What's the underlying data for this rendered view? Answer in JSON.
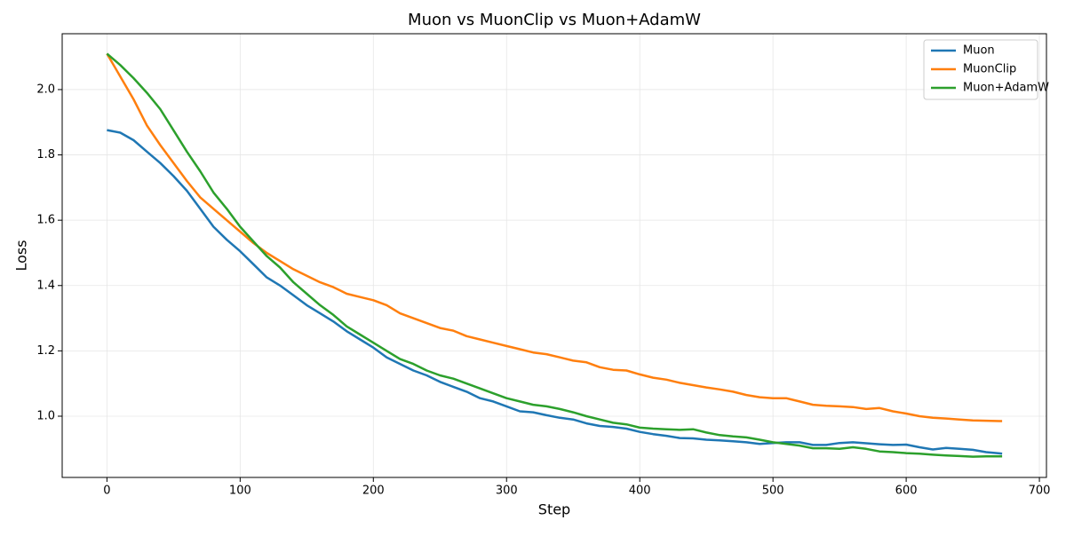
{
  "chart_data": {
    "type": "line",
    "title": "Muon vs MuonClip vs Muon+AdamW",
    "x_label": "Step",
    "y_label": "Loss",
    "x": [
      0,
      10,
      20,
      30,
      40,
      50,
      60,
      70,
      80,
      90,
      100,
      110,
      120,
      130,
      140,
      150,
      160,
      170,
      180,
      190,
      200,
      210,
      220,
      230,
      240,
      250,
      260,
      270,
      280,
      290,
      300,
      310,
      320,
      330,
      340,
      350,
      360,
      370,
      380,
      390,
      400,
      410,
      420,
      430,
      440,
      450,
      460,
      470,
      480,
      490,
      500,
      510,
      520,
      530,
      540,
      550,
      560,
      570,
      580,
      590,
      600,
      610,
      620,
      630,
      640,
      650,
      660,
      670,
      672
    ],
    "series": [
      {
        "name": "Muon",
        "color": "#1f77b4",
        "values": [
          1.876,
          1.868,
          1.845,
          1.81,
          1.775,
          1.735,
          1.69,
          1.635,
          1.58,
          1.54,
          1.505,
          1.465,
          1.425,
          1.4,
          1.37,
          1.34,
          1.315,
          1.29,
          1.26,
          1.235,
          1.21,
          1.18,
          1.16,
          1.14,
          1.125,
          1.105,
          1.09,
          1.075,
          1.055,
          1.045,
          1.03,
          1.015,
          1.012,
          1.003,
          0.995,
          0.99,
          0.978,
          0.97,
          0.967,
          0.962,
          0.952,
          0.945,
          0.94,
          0.933,
          0.932,
          0.928,
          0.926,
          0.923,
          0.92,
          0.915,
          0.918,
          0.92,
          0.92,
          0.912,
          0.912,
          0.918,
          0.92,
          0.917,
          0.914,
          0.912,
          0.913,
          0.905,
          0.898,
          0.903,
          0.9,
          0.897,
          0.89,
          0.886,
          0.885
        ]
      },
      {
        "name": "MuonClip",
        "color": "#ff7f0e",
        "values": [
          2.11,
          2.04,
          1.97,
          1.89,
          1.83,
          1.775,
          1.72,
          1.67,
          1.635,
          1.6,
          1.565,
          1.53,
          1.5,
          1.475,
          1.45,
          1.43,
          1.41,
          1.395,
          1.375,
          1.365,
          1.355,
          1.34,
          1.315,
          1.3,
          1.285,
          1.27,
          1.262,
          1.245,
          1.235,
          1.225,
          1.215,
          1.205,
          1.195,
          1.19,
          1.18,
          1.17,
          1.165,
          1.15,
          1.142,
          1.14,
          1.128,
          1.118,
          1.112,
          1.102,
          1.095,
          1.088,
          1.082,
          1.075,
          1.065,
          1.058,
          1.055,
          1.055,
          1.045,
          1.035,
          1.032,
          1.03,
          1.028,
          1.022,
          1.025,
          1.015,
          1.008,
          1.0,
          0.995,
          0.993,
          0.99,
          0.987,
          0.986,
          0.985,
          0.985
        ]
      },
      {
        "name": "Muon+AdamW",
        "color": "#2ca02c",
        "values": [
          2.11,
          2.075,
          2.035,
          1.99,
          1.94,
          1.875,
          1.81,
          1.75,
          1.685,
          1.635,
          1.58,
          1.535,
          1.49,
          1.455,
          1.41,
          1.375,
          1.34,
          1.31,
          1.275,
          1.25,
          1.225,
          1.2,
          1.175,
          1.16,
          1.14,
          1.125,
          1.115,
          1.1,
          1.085,
          1.07,
          1.055,
          1.045,
          1.035,
          1.03,
          1.022,
          1.012,
          1.0,
          0.99,
          0.98,
          0.975,
          0.965,
          0.962,
          0.96,
          0.958,
          0.96,
          0.95,
          0.942,
          0.938,
          0.935,
          0.928,
          0.92,
          0.915,
          0.91,
          0.902,
          0.902,
          0.9,
          0.905,
          0.9,
          0.892,
          0.89,
          0.887,
          0.885,
          0.882,
          0.88,
          0.878,
          0.876,
          0.877,
          0.877,
          0.877
        ]
      }
    ],
    "xlim": [
      -33.6,
      705.3
    ],
    "xticks": [
      0,
      100,
      200,
      300,
      400,
      500,
      600,
      700
    ],
    "ylim": [
      0.8125,
      2.171
    ],
    "yticks": [
      {
        "value": 1,
        "label": "1.0"
      },
      1.2,
      1.4,
      1.6,
      1.8,
      {
        "value": 2,
        "label": "2.0"
      }
    ],
    "grid": true,
    "legend": "upper right"
  }
}
